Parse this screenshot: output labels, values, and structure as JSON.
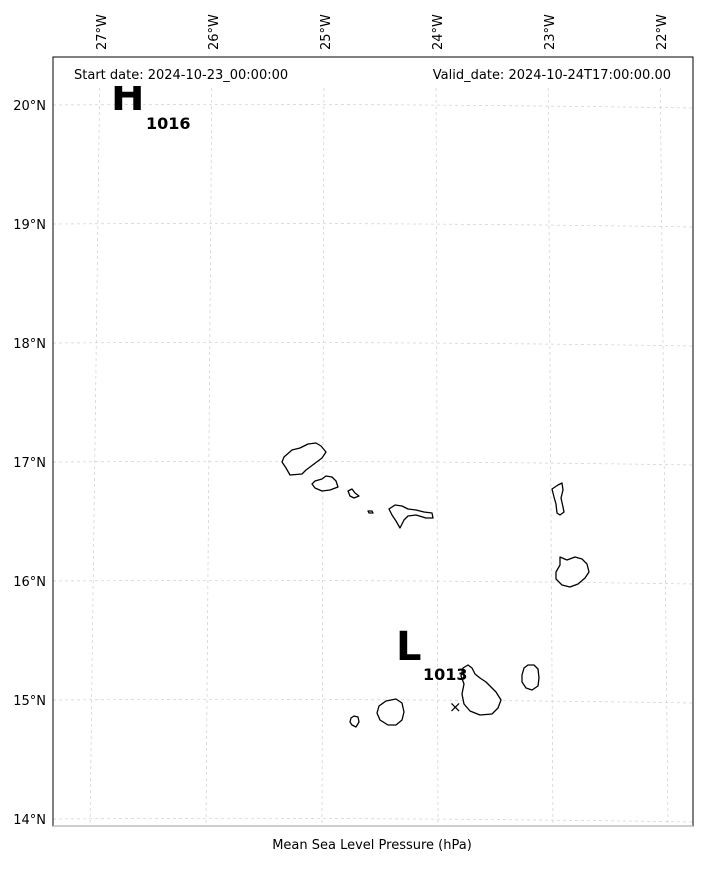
{
  "map": {
    "start_date_label": "Start date: 2024-10-23_00:00:00",
    "valid_date_label": "Valid_date: 2024-10-24T17:00:00.00",
    "xlabel": "Mean Sea Level Pressure (hPa)",
    "lon_ticks": [
      "27°W",
      "26°W",
      "25°W",
      "24°W",
      "23°W",
      "22°W"
    ],
    "lat_ticks": [
      "20°N",
      "19°N",
      "18°N",
      "17°N",
      "16°N",
      "15°N",
      "14°N"
    ],
    "pressure_centers": [
      {
        "type": "H",
        "value": "1016"
      },
      {
        "type": "L",
        "value": "1013"
      }
    ],
    "marker_symbol": "×"
  }
}
